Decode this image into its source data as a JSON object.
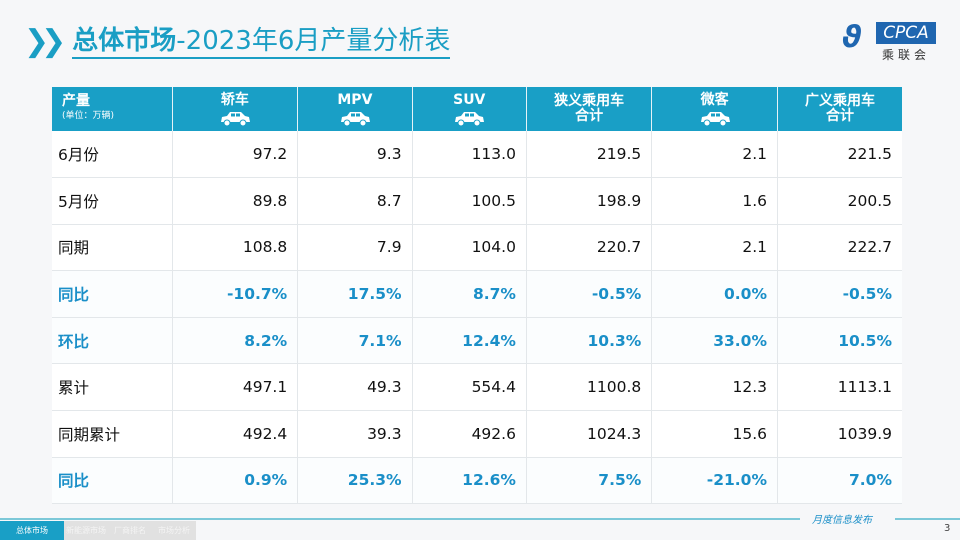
{
  "title": {
    "bold": "总体市场",
    "rest": "-2023年6月产量分析表"
  },
  "logo": {
    "en": "CPCA",
    "cn": "乘联会"
  },
  "table": {
    "unit_label": "产量",
    "unit_sub": "(单位：万辆)",
    "headers": [
      {
        "l1": "轿车",
        "icon": "sedan-icon"
      },
      {
        "l1": "MPV",
        "icon": "mpv-icon"
      },
      {
        "l1": "SUV",
        "icon": "suv-icon"
      },
      {
        "l1": "狭义乘用车",
        "l2": "合计"
      },
      {
        "l1": "微客",
        "icon": "minivan-icon"
      },
      {
        "l1": "广义乘用车",
        "l2": "合计"
      }
    ],
    "rows": [
      {
        "label": "6月份",
        "values": [
          "97.2",
          "9.3",
          "113.0",
          "219.5",
          "2.1",
          "221.5"
        ]
      },
      {
        "label": "5月份",
        "values": [
          "89.8",
          "8.7",
          "100.5",
          "198.9",
          "1.6",
          "200.5"
        ]
      },
      {
        "label": "同期",
        "values": [
          "108.8",
          "7.9",
          "104.0",
          "220.7",
          "2.1",
          "222.7"
        ]
      },
      {
        "label": "同比",
        "hl": true,
        "values": [
          "-10.7%",
          "17.5%",
          "8.7%",
          "-0.5%",
          "0.0%",
          "-0.5%"
        ]
      },
      {
        "label": "环比",
        "hl": true,
        "values": [
          "8.2%",
          "7.1%",
          "12.4%",
          "10.3%",
          "33.0%",
          "10.5%"
        ]
      },
      {
        "label": "累计",
        "values": [
          "497.1",
          "49.3",
          "554.4",
          "1100.8",
          "12.3",
          "1113.1"
        ]
      },
      {
        "label": "同期累计",
        "values": [
          "492.4",
          "39.3",
          "492.6",
          "1024.3",
          "15.6",
          "1039.9"
        ]
      },
      {
        "label": "同比",
        "hl": true,
        "values": [
          "0.9%",
          "25.3%",
          "12.6%",
          "7.5%",
          "-21.0%",
          "7.0%"
        ]
      }
    ]
  },
  "footer": {
    "publish": "月度信息发布",
    "page": "3",
    "tabs": [
      "总体市场",
      "新能源市场",
      "厂商排名",
      "市场分析"
    ]
  },
  "colors": {
    "accent": "#199fc6",
    "highlight_text": "#1a8fc8"
  }
}
